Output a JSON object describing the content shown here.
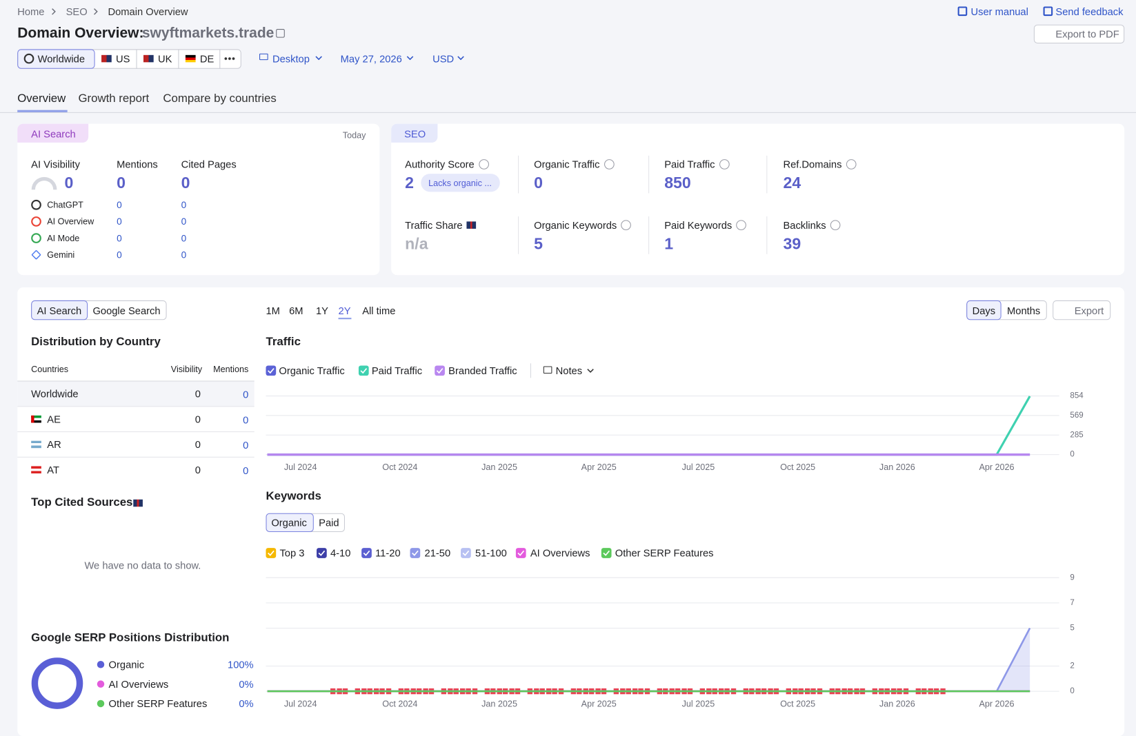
{
  "breadcrumbs": [
    "Home",
    "SEO",
    "Domain Overview"
  ],
  "header": {
    "title": "Domain Overview:",
    "domain": "swyftmarkets.trade",
    "links": [
      "User manual",
      "Send feedback"
    ],
    "export": "Export to PDF"
  },
  "filters": {
    "regions": [
      "Worldwide",
      "US",
      "UK",
      "DE"
    ],
    "device": "Desktop",
    "date": "May 27, 2026",
    "currency": "USD"
  },
  "tabs": [
    "Overview",
    "Growth report",
    "Compare by countries"
  ],
  "ai_search": {
    "label": "AI Search",
    "period": "Today",
    "metrics": [
      {
        "label": "AI Visibility",
        "value": 0
      },
      {
        "label": "Mentions",
        "value": 0
      },
      {
        "label": "Cited Pages",
        "value": 0
      }
    ],
    "platforms": [
      {
        "name": "ChatGPT",
        "mentions": 0,
        "cited": 0
      },
      {
        "name": "AI Overview",
        "mentions": 0,
        "cited": 0
      },
      {
        "name": "AI Mode",
        "mentions": 0,
        "cited": 0
      },
      {
        "name": "Gemini",
        "mentions": 0,
        "cited": 0
      }
    ]
  },
  "seo": {
    "label": "SEO",
    "metrics": [
      {
        "label": "Authority Score",
        "value": 2,
        "badge": "Lacks organic ..."
      },
      {
        "label": "Organic Traffic",
        "value": 0
      },
      {
        "label": "Paid Traffic",
        "value": 850
      },
      {
        "label": "Ref.Domains",
        "value": 24
      },
      {
        "label": "Traffic Share",
        "value": "n/a"
      },
      {
        "label": "Organic Keywords",
        "value": 5
      },
      {
        "label": "Paid Keywords",
        "value": 1
      },
      {
        "label": "Backlinks",
        "value": 39
      }
    ]
  },
  "controls": {
    "source": [
      "AI Search",
      "Google Search"
    ],
    "periods": [
      "1M",
      "6M",
      "1Y",
      "2Y",
      "All time"
    ],
    "granularity": [
      "Days",
      "Months"
    ],
    "export": "Export"
  },
  "distribution": {
    "title": "Distribution by Country",
    "columns": [
      "Countries",
      "Visibility",
      "Mentions"
    ],
    "rows": [
      [
        "Worldwide",
        0,
        0
      ],
      [
        "AE",
        0,
        0
      ],
      [
        "AR",
        0,
        0
      ],
      [
        "AT",
        0,
        0
      ]
    ]
  },
  "top_cited": {
    "title": "Top Cited Sources",
    "empty": "We have no data to show."
  },
  "chart_data": [
    {
      "type": "line",
      "title": "Traffic",
      "notes": "Notes",
      "x": [
        null,
        "Jul 2024",
        null,
        null,
        "Oct 2024",
        null,
        null,
        "Jan 2025",
        null,
        null,
        "Apr 2025",
        null,
        null,
        "Jul 2025",
        null,
        null,
        "Oct 2025",
        null,
        null,
        "Jan 2026",
        null,
        null,
        "Apr 2026",
        null
      ],
      "ylim": [
        0,
        854
      ],
      "yticks": [
        0,
        285,
        569,
        854
      ],
      "grid": true,
      "series": [
        {
          "name": "Organic Traffic",
          "color": "#5b62d6",
          "values": [
            0,
            0,
            0,
            0,
            0,
            0,
            0,
            0,
            0,
            0,
            0,
            0,
            0,
            0,
            0,
            0,
            0,
            0,
            0,
            0,
            0,
            0,
            0,
            0
          ]
        },
        {
          "name": "Paid Traffic",
          "color": "#3fd1b0",
          "values": [
            0,
            0,
            0,
            0,
            0,
            0,
            0,
            0,
            0,
            0,
            0,
            0,
            0,
            0,
            0,
            0,
            0,
            0,
            0,
            0,
            0,
            0,
            0,
            850
          ]
        },
        {
          "name": "Branded Traffic",
          "color": "#b987f0",
          "values": [
            0,
            0,
            0,
            0,
            0,
            0,
            0,
            0,
            0,
            0,
            0,
            0,
            0,
            0,
            0,
            0,
            0,
            0,
            0,
            0,
            0,
            0,
            0,
            0
          ]
        }
      ]
    },
    {
      "type": "area",
      "title": "Keywords",
      "toggle": [
        "Organic",
        "Paid"
      ],
      "x": [
        null,
        "Jul 2024",
        null,
        null,
        "Oct 2024",
        null,
        null,
        "Jan 2025",
        null,
        null,
        "Apr 2025",
        null,
        null,
        "Jul 2025",
        null,
        null,
        "Oct 2025",
        null,
        null,
        "Jan 2026",
        null,
        null,
        "Apr 2026",
        null
      ],
      "ylim": [
        0,
        9
      ],
      "yticks": [
        0,
        2,
        5,
        7,
        9
      ],
      "grid": true,
      "series": [
        {
          "name": "Top 3",
          "color": "#f5b800",
          "values": [
            0,
            0,
            0,
            0,
            0,
            0,
            0,
            0,
            0,
            0,
            0,
            0,
            0,
            0,
            0,
            0,
            0,
            0,
            0,
            0,
            0,
            0,
            0,
            0
          ]
        },
        {
          "name": "4-10",
          "color": "#3d3fa8",
          "values": [
            0,
            0,
            0,
            0,
            0,
            0,
            0,
            0,
            0,
            0,
            0,
            0,
            0,
            0,
            0,
            0,
            0,
            0,
            0,
            0,
            0,
            0,
            0,
            0
          ]
        },
        {
          "name": "11-20",
          "color": "#5b5fd1",
          "values": [
            0,
            0,
            0,
            0,
            0,
            0,
            0,
            0,
            0,
            0,
            0,
            0,
            0,
            0,
            0,
            0,
            0,
            0,
            0,
            0,
            0,
            0,
            0,
            0
          ]
        },
        {
          "name": "21-50",
          "color": "#8e98e8",
          "values": [
            0,
            0,
            0,
            0,
            0,
            0,
            0,
            0,
            0,
            0,
            0,
            0,
            0,
            0,
            0,
            0,
            0,
            0,
            0,
            0,
            0,
            0,
            0,
            5
          ]
        },
        {
          "name": "51-100",
          "color": "#b7c0f2",
          "values": [
            0,
            0,
            0,
            0,
            0,
            0,
            0,
            0,
            0,
            0,
            0,
            0,
            0,
            0,
            0,
            0,
            0,
            0,
            0,
            0,
            0,
            0,
            0,
            0
          ]
        },
        {
          "name": "AI Overviews",
          "color": "#e35bdd",
          "values": [
            0,
            0,
            0,
            0,
            0,
            0,
            0,
            0,
            0,
            0,
            0,
            0,
            0,
            0,
            0,
            0,
            0,
            0,
            0,
            0,
            0,
            0,
            0,
            0
          ]
        },
        {
          "name": "Other SERP Features",
          "color": "#5cc95c",
          "values": [
            0,
            0,
            0,
            0,
            0,
            0,
            0,
            0,
            0,
            0,
            0,
            0,
            0,
            0,
            0,
            0,
            0,
            0,
            0,
            0,
            0,
            0,
            0,
            0
          ]
        }
      ]
    },
    {
      "type": "pie",
      "title": "Google SERP Positions Distribution",
      "categories": [
        "Organic",
        "AI Overviews",
        "Other SERP Features"
      ],
      "values": [
        100,
        0,
        0
      ],
      "value_labels": [
        "100%",
        "0%",
        "0%"
      ],
      "colors": [
        "#5a5fd6",
        "#e35bdd",
        "#5cc95c"
      ]
    }
  ]
}
